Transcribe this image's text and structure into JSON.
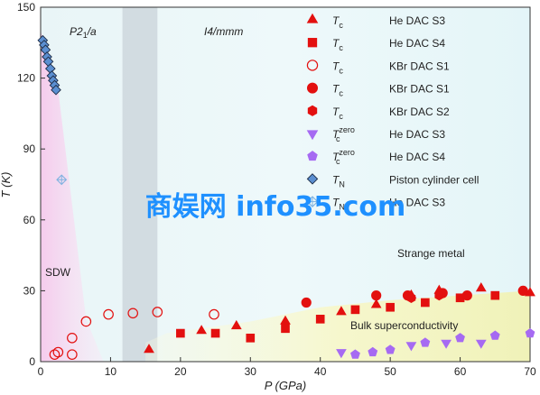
{
  "chart_data": {
    "type": "scatter",
    "xlabel": "P (GPa)",
    "ylabel": "T (K)",
    "xlim": [
      0,
      70
    ],
    "ylim": [
      0,
      150
    ],
    "x_ticks": [
      0,
      10,
      20,
      30,
      40,
      50,
      60,
      70
    ],
    "y_ticks": [
      0,
      30,
      60,
      90,
      120,
      150
    ],
    "regions": {
      "p21a": "P2",
      "p21a_sub": "1",
      "p21a_tail": "/a",
      "i4mmm": "I4/mmm",
      "sdw": "SDW",
      "strange_metal": "Strange metal",
      "bulk_sc": "Bulk superconductivity",
      "gray_band_x": [
        11.7,
        16.7
      ]
    },
    "legend": [
      {
        "id": "tc_he_s3",
        "sym": "T",
        "sub": "c",
        "sup": "",
        "label": "He DAC S3"
      },
      {
        "id": "tc_he_s4",
        "sym": "T",
        "sub": "c",
        "sup": "",
        "label": "He DAC S4"
      },
      {
        "id": "tc_kbr_s1_open",
        "sym": "T",
        "sub": "c",
        "sup": "",
        "label": "KBr DAC S1"
      },
      {
        "id": "tc_kbr_s1",
        "sym": "T",
        "sub": "c",
        "sup": "",
        "label": "KBr DAC S1"
      },
      {
        "id": "tc_kbr_s2",
        "sym": "T",
        "sub": "c",
        "sup": "",
        "label": "KBr DAC S2"
      },
      {
        "id": "tczero_he_s3",
        "sym": "T",
        "sub": "c",
        "sup": "zero",
        "label": "He DAC S3"
      },
      {
        "id": "tczero_he_s4",
        "sym": "T",
        "sub": "c",
        "sup": "zero",
        "label": "He DAC S4"
      },
      {
        "id": "tn_piston",
        "sym": "T",
        "sub": "N",
        "sup": "",
        "label": "Piston cylinder cell"
      },
      {
        "id": "tn_he_s3",
        "sym": "T",
        "sub": "N",
        "sup": "",
        "label": "He DAC S3"
      }
    ],
    "series": [
      {
        "id": "tc_he_s3",
        "marker": "triangle",
        "color": "#e3100f",
        "filled": true,
        "points": [
          [
            15.5,
            5
          ],
          [
            23,
            13
          ],
          [
            28,
            15
          ],
          [
            35,
            17
          ],
          [
            43,
            21
          ],
          [
            48,
            24
          ],
          [
            53,
            28
          ],
          [
            57,
            30
          ],
          [
            63,
            31
          ],
          [
            70,
            29
          ]
        ]
      },
      {
        "id": "tc_he_s4",
        "marker": "square",
        "color": "#e3100f",
        "filled": true,
        "points": [
          [
            20,
            12
          ],
          [
            25,
            12
          ],
          [
            30,
            10
          ],
          [
            35,
            14
          ],
          [
            40,
            18
          ],
          [
            45,
            22
          ],
          [
            50,
            23
          ],
          [
            55,
            25
          ],
          [
            60,
            27
          ],
          [
            65,
            28
          ]
        ]
      },
      {
        "id": "tc_kbr_s1_open",
        "marker": "circle",
        "color": "#e3100f",
        "filled": false,
        "points": [
          [
            2,
            3
          ],
          [
            2.5,
            4
          ],
          [
            4.5,
            3
          ],
          [
            4.5,
            10
          ],
          [
            6.5,
            17
          ],
          [
            9.7,
            20
          ],
          [
            13.2,
            20.5
          ],
          [
            16.7,
            21
          ],
          [
            24.8,
            20
          ]
        ]
      },
      {
        "id": "tc_kbr_s1",
        "marker": "circle",
        "color": "#e3100f",
        "filled": true,
        "points": [
          [
            38,
            25
          ],
          [
            48,
            28
          ],
          [
            52.5,
            28
          ],
          [
            57.5,
            29
          ],
          [
            61,
            28
          ],
          [
            69,
            30
          ]
        ]
      },
      {
        "id": "tc_kbr_s2",
        "marker": "hexagon",
        "color": "#e3100f",
        "filled": true,
        "points": [
          [
            53,
            27
          ],
          [
            57,
            28
          ]
        ]
      },
      {
        "id": "tczero_he_s3",
        "marker": "down-triangle",
        "color": "#a66af2",
        "filled": true,
        "points": [
          [
            43,
            4
          ],
          [
            53,
            7
          ],
          [
            58,
            8
          ],
          [
            63,
            8
          ]
        ]
      },
      {
        "id": "tczero_he_s4",
        "marker": "pentagon",
        "color": "#a66af2",
        "filled": true,
        "points": [
          [
            45,
            3
          ],
          [
            47.5,
            4
          ],
          [
            50,
            5
          ],
          [
            55,
            8
          ],
          [
            60,
            10
          ],
          [
            65,
            11
          ],
          [
            70,
            12
          ]
        ]
      },
      {
        "id": "tn_piston",
        "marker": "diamond",
        "color": "#5b8fd1",
        "filled": true,
        "points": [
          [
            0.3,
            136
          ],
          [
            0.5,
            134
          ],
          [
            0.7,
            132
          ],
          [
            0.9,
            129
          ],
          [
            1.1,
            127
          ],
          [
            1.4,
            124
          ],
          [
            1.6,
            121
          ],
          [
            1.8,
            119
          ],
          [
            2.0,
            117
          ],
          [
            2.2,
            115
          ]
        ]
      },
      {
        "id": "tn_he_s3",
        "marker": "crossed-diamond",
        "color": "#7fb2e0",
        "filled": false,
        "points": [
          [
            3,
            77
          ]
        ]
      }
    ],
    "watermark": "商娱网 info35.com"
  }
}
